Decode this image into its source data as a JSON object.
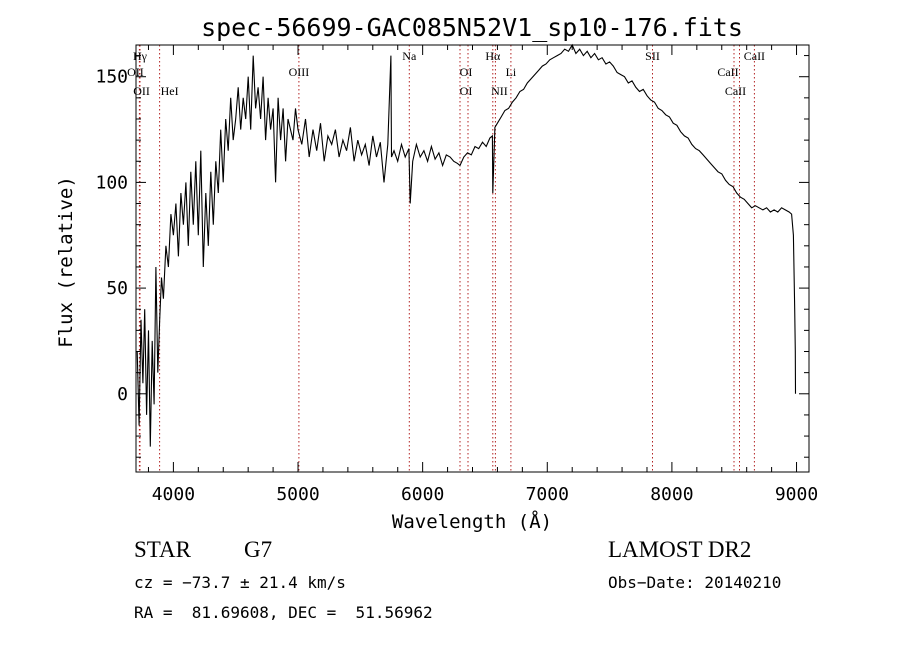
{
  "chart_data": {
    "type": "line",
    "title": "spec-56699-GAC085N52V1_sp10-176.fits",
    "xlabel": "Wavelength (Å)",
    "ylabel": "Flux (relative)",
    "xlim": [
      3700,
      9100
    ],
    "ylim": [
      -37,
      165
    ],
    "xticks": [
      4000,
      5000,
      6000,
      7000,
      8000,
      9000
    ],
    "yticks": [
      0,
      50,
      100,
      150
    ],
    "grid": false,
    "line_color": "#000000",
    "marker_color": "#b22222",
    "series": [
      {
        "x": [
          3710,
          3725,
          3740,
          3755,
          3770,
          3785,
          3800,
          3815,
          3830,
          3845,
          3860,
          3875,
          3890,
          3905,
          3920,
          3940,
          3960,
          3980,
          4000,
          4020,
          4040,
          4060,
          4080,
          4100,
          4120,
          4140,
          4160,
          4180,
          4200,
          4220,
          4240,
          4260,
          4280,
          4300,
          4320,
          4340,
          4360,
          4380,
          4400,
          4420,
          4440,
          4460,
          4480,
          4500,
          4520,
          4540,
          4560,
          4580,
          4600,
          4620,
          4640,
          4660,
          4680,
          4700,
          4720,
          4740,
          4760,
          4780,
          4800,
          4820,
          4840,
          4860,
          4880,
          4900,
          4920,
          4940,
          4960,
          4980,
          5000,
          5030,
          5060,
          5090,
          5120,
          5150,
          5180,
          5210,
          5240,
          5270,
          5300,
          5330,
          5360,
          5390,
          5420,
          5450,
          5480,
          5510,
          5540,
          5570,
          5600,
          5630,
          5660,
          5690,
          5720,
          5745,
          5750,
          5770,
          5800,
          5830,
          5860,
          5890,
          5900,
          5920,
          5950,
          5980,
          6010,
          6040,
          6070,
          6100,
          6130,
          6160,
          6190,
          6220,
          6250,
          6280,
          6300,
          6330,
          6360,
          6390,
          6420,
          6450,
          6480,
          6510,
          6540,
          6560,
          6563,
          6580,
          6600,
          6630,
          6660,
          6690,
          6720,
          6750,
          6780,
          6810,
          6840,
          6870,
          6900,
          6930,
          6960,
          6990,
          7020,
          7050,
          7080,
          7110,
          7140,
          7170,
          7200,
          7230,
          7260,
          7290,
          7320,
          7350,
          7380,
          7410,
          7440,
          7470,
          7500,
          7530,
          7560,
          7590,
          7620,
          7650,
          7680,
          7710,
          7740,
          7770,
          7800,
          7830,
          7860,
          7890,
          7920,
          7950,
          7980,
          8010,
          8040,
          8070,
          8100,
          8130,
          8160,
          8190,
          8220,
          8250,
          8280,
          8310,
          8340,
          8370,
          8400,
          8430,
          8460,
          8490,
          8520,
          8550,
          8580,
          8610,
          8640,
          8670,
          8700,
          8730,
          8760,
          8790,
          8820,
          8850,
          8880,
          8910,
          8940,
          8960,
          8975,
          8985,
          8990,
          8992
        ],
        "y": [
          20,
          -15,
          35,
          5,
          40,
          -10,
          30,
          -25,
          25,
          -5,
          60,
          10,
          35,
          55,
          45,
          70,
          60,
          85,
          75,
          90,
          65,
          95,
          80,
          100,
          70,
          105,
          80,
          110,
          75,
          115,
          60,
          95,
          70,
          105,
          80,
          110,
          95,
          125,
          100,
          130,
          115,
          140,
          120,
          130,
          145,
          125,
          140,
          130,
          150,
          125,
          160,
          135,
          145,
          130,
          150,
          120,
          140,
          125,
          135,
          100,
          140,
          120,
          135,
          110,
          130,
          125,
          120,
          135,
          125,
          118,
          130,
          112,
          125,
          115,
          128,
          110,
          122,
          118,
          125,
          112,
          120,
          115,
          126,
          110,
          120,
          113,
          118,
          108,
          122,
          112,
          119,
          100,
          118,
          160,
          112,
          115,
          110,
          118,
          112,
          116,
          90,
          110,
          118,
          112,
          115,
          110,
          117,
          111,
          114,
          108,
          113,
          112,
          110,
          109,
          108,
          112,
          114,
          113,
          117,
          116,
          119,
          117,
          121,
          122,
          95,
          126,
          128,
          131,
          134,
          135,
          138,
          140,
          143,
          144,
          147,
          149,
          151,
          153,
          155,
          156,
          158,
          159,
          160,
          161,
          163,
          162,
          165,
          161,
          163,
          160,
          162,
          159,
          161,
          158,
          159,
          156,
          157,
          155,
          152,
          151,
          150,
          147,
          148,
          145,
          143,
          144,
          141,
          139,
          138,
          135,
          134,
          132,
          131,
          128,
          127,
          124,
          122,
          121,
          118,
          116,
          115,
          113,
          111,
          109,
          107,
          105,
          104,
          101,
          99,
          98,
          95,
          93,
          92,
          90,
          88,
          89,
          88,
          87,
          88,
          86,
          87,
          86,
          88,
          87,
          86,
          85,
          75,
          40,
          20,
          0
        ]
      }
    ],
    "lines": [
      {
        "name": "Hγ",
        "x": 3732
      },
      {
        "name": "OII",
        "x": 3727
      },
      {
        "name": "OII",
        "x": 3729
      },
      {
        "name": "HeI",
        "x": 3889
      },
      {
        "name": "OIII",
        "x": 5007
      },
      {
        "name": "Na",
        "x": 5893
      },
      {
        "name": "OI",
        "x": 6300
      },
      {
        "name": "OI",
        "x": 6364
      },
      {
        "name": "Hα",
        "x": 6563
      },
      {
        "name": "NII",
        "x": 6584
      },
      {
        "name": "Li",
        "x": 6708
      },
      {
        "name": "SII",
        "x": 7844
      },
      {
        "name": "CaII",
        "x": 8498
      },
      {
        "name": "CaII",
        "x": 8542
      },
      {
        "name": "CaII",
        "x": 8662
      }
    ]
  },
  "footer": {
    "object_class": "STAR",
    "subclass": "G7",
    "survey": "LAMOST DR2",
    "cz": "cz = −73.7 ± 21.4 km/s",
    "obs_date": "Obs−Date: 20140210",
    "coords": "RA =  81.69608, DEC =  51.56962"
  }
}
